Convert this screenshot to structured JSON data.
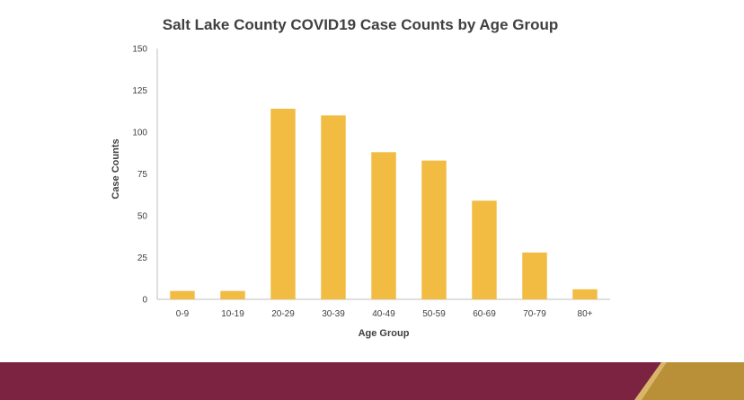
{
  "colors": {
    "bar": "#F2BB41",
    "footer_band": "#7B2340",
    "footer_accent_gold": "#B98F38",
    "footer_accent_light": "#D9B56A",
    "text": "#404040",
    "axis": "#BFBFBF"
  },
  "chart_data": {
    "type": "bar",
    "title": "Salt Lake County COVID19 Case Counts by Age Group",
    "xlabel": "Age Group",
    "ylabel": "Case Counts",
    "categories": [
      "0-9",
      "10-19",
      "20-29",
      "30-39",
      "40-49",
      "50-59",
      "60-69",
      "70-79",
      "80+"
    ],
    "values": [
      5,
      5,
      114,
      110,
      88,
      83,
      59,
      28,
      6
    ],
    "ylim": [
      0,
      150
    ],
    "yticks": [
      0,
      25,
      50,
      75,
      100,
      125,
      150
    ],
    "grid": false,
    "legend": "none"
  }
}
